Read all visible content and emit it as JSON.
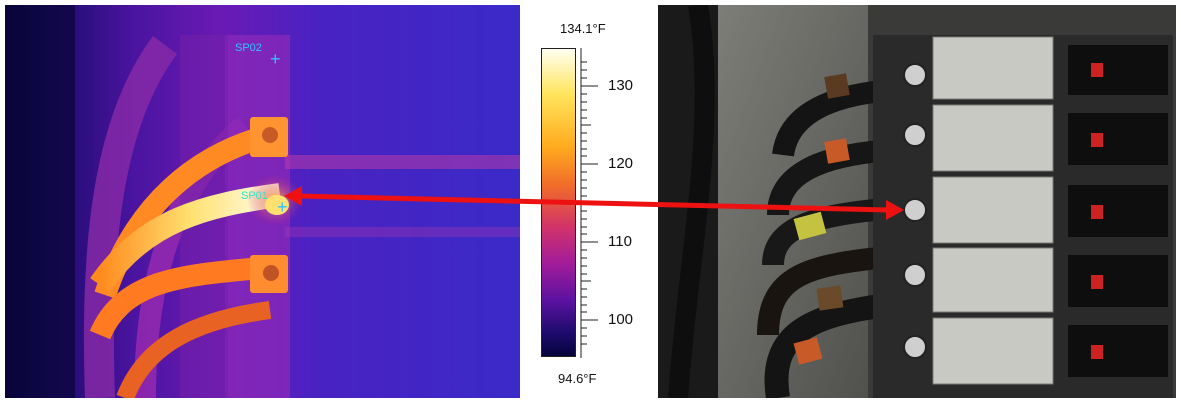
{
  "thermal_image": {
    "spots": [
      {
        "label": "SP02",
        "color": "#2ec4ff"
      },
      {
        "label": "SP01",
        "color": "#2ee6c8"
      }
    ]
  },
  "color_scale": {
    "max_label": "134.1°F",
    "min_label": "94.6°F",
    "ticks": [
      "130",
      "120",
      "110",
      "100"
    ],
    "palette": [
      "#fffff2",
      "#ffe45a",
      "#ffaa1e",
      "#f06a2a",
      "#d2336a",
      "#a11c9a",
      "#5a12a0",
      "#1c0a6a",
      "#05033a"
    ]
  },
  "annotation": {
    "arrow_color": "#ee1111",
    "description_icon": "double-headed-arrow-icon"
  }
}
